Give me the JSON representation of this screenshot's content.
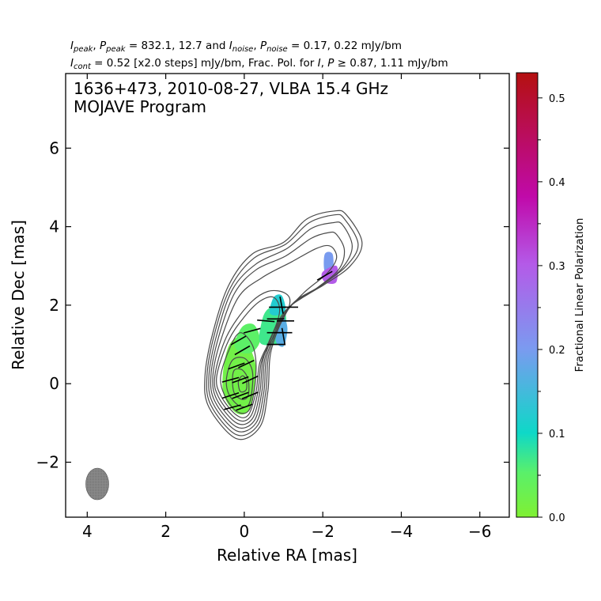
{
  "chart_data": {
    "type": "contour",
    "header_line1": {
      "s1": "I",
      "s2": "peak",
      "s3": ", ",
      "s4": "P",
      "s5": "peak",
      "s6": " = 832.1, 12.7 and ",
      "s7": "I",
      "s8": "noise",
      "s9": ", ",
      "s10": "P",
      "s11": "noise",
      "s12": " = 0.17, 0.22 mJy/bm"
    },
    "header_line2": {
      "s1": "I",
      "s2": "cont",
      "s3": " = 0.52 [x2.0 steps] mJy/bm, Frac. Pol. for ",
      "s4": "I",
      "s5": ", ",
      "s6": "P",
      "s7": " ≥ 0.87, 1.11 mJy/bm"
    },
    "title_line1": "1636+473, 2010-08-27, VLBA 15.4 GHz",
    "title_line2": "MOJAVE Program",
    "xlabel": "Relative RA [mas]",
    "ylabel": "Relative Dec [mas]",
    "xlim": [
      4.55,
      -6.75
    ],
    "ylim": [
      -3.4,
      7.9
    ],
    "x_ticks": [
      4,
      2,
      0,
      -2,
      -4,
      -6
    ],
    "x_tick_labels": [
      "4",
      "2",
      "0",
      "−2",
      "−4",
      "−6"
    ],
    "y_ticks": [
      -2,
      0,
      2,
      4,
      6
    ],
    "y_tick_labels": [
      "−2",
      "0",
      "2",
      "4",
      "6"
    ],
    "colorbar": {
      "label": "Fractional Linear Polarization",
      "range": [
        0.0,
        0.53
      ],
      "ticks": [
        0.0,
        0.1,
        0.2,
        0.3,
        0.4,
        0.5
      ],
      "tick_labels": [
        "0.0",
        "0.1",
        "0.2",
        "0.3",
        "0.4",
        "0.5"
      ],
      "minor_ticks": [
        0.05,
        0.15,
        0.25,
        0.35,
        0.45
      ]
    },
    "beam": {
      "x": 3.7,
      "y": -2.6,
      "major_mas": 0.85,
      "minor_mas": 0.58
    },
    "contours": [
      [
        [
          1.0,
          0.2
        ],
        [
          0.9,
          -0.6
        ],
        [
          0.2,
          -1.4
        ],
        [
          -0.4,
          -1.1
        ],
        [
          -0.6,
          -0.2
        ],
        [
          -0.7,
          0.9
        ],
        [
          -1.2,
          2.0
        ],
        [
          -2.0,
          2.5
        ],
        [
          -2.7,
          3.0
        ],
        [
          -3.0,
          3.6
        ],
        [
          -2.6,
          4.3
        ],
        [
          -2.3,
          4.4
        ],
        [
          -1.6,
          4.2
        ],
        [
          -1.0,
          3.6
        ],
        [
          -0.2,
          3.3
        ],
        [
          0.4,
          2.5
        ],
        [
          0.8,
          1.3
        ]
      ],
      [
        [
          0.95,
          0.2
        ],
        [
          0.85,
          -0.55
        ],
        [
          0.2,
          -1.3
        ],
        [
          -0.35,
          -1.05
        ],
        [
          -0.55,
          -0.2
        ],
        [
          -0.65,
          0.85
        ],
        [
          -1.15,
          1.95
        ],
        [
          -1.95,
          2.5
        ],
        [
          -2.6,
          3.0
        ],
        [
          -2.9,
          3.55
        ],
        [
          -2.55,
          4.2
        ],
        [
          -2.3,
          4.3
        ],
        [
          -1.65,
          4.1
        ],
        [
          -1.05,
          3.55
        ],
        [
          -0.25,
          3.2
        ],
        [
          0.35,
          2.45
        ],
        [
          0.75,
          1.3
        ]
      ],
      [
        [
          0.9,
          0.2
        ],
        [
          0.8,
          -0.5
        ],
        [
          0.2,
          -1.2
        ],
        [
          -0.3,
          -1.0
        ],
        [
          -0.5,
          -0.2
        ],
        [
          -0.6,
          0.8
        ],
        [
          -1.1,
          1.9
        ],
        [
          -1.9,
          2.45
        ],
        [
          -2.5,
          2.95
        ],
        [
          -2.75,
          3.5
        ],
        [
          -2.5,
          4.05
        ],
        [
          -2.25,
          4.1
        ],
        [
          -1.7,
          3.95
        ],
        [
          -1.1,
          3.45
        ],
        [
          -0.3,
          3.05
        ],
        [
          0.3,
          2.4
        ],
        [
          0.7,
          1.25
        ]
      ],
      [
        [
          0.85,
          0.2
        ],
        [
          0.75,
          -0.45
        ],
        [
          0.2,
          -1.1
        ],
        [
          -0.25,
          -0.95
        ],
        [
          -0.45,
          -0.2
        ],
        [
          -0.55,
          0.75
        ],
        [
          -1.0,
          1.8
        ],
        [
          -1.8,
          2.4
        ],
        [
          -2.4,
          2.9
        ],
        [
          -2.55,
          3.4
        ],
        [
          -2.35,
          3.8
        ],
        [
          -2.15,
          3.85
        ],
        [
          -1.7,
          3.7
        ],
        [
          -1.05,
          3.25
        ],
        [
          -0.3,
          2.9
        ],
        [
          0.25,
          2.3
        ],
        [
          0.65,
          1.2
        ]
      ],
      [
        [
          0.8,
          0.2
        ],
        [
          0.7,
          -0.4
        ],
        [
          0.2,
          -1.0
        ],
        [
          -0.2,
          -0.9
        ],
        [
          -0.4,
          -0.2
        ],
        [
          -0.5,
          0.7
        ],
        [
          -0.9,
          1.6
        ],
        [
          -1.5,
          2.3
        ],
        [
          -2.1,
          2.8
        ],
        [
          -2.35,
          3.2
        ],
        [
          -2.2,
          3.5
        ],
        [
          -1.85,
          3.45
        ],
        [
          -1.2,
          3.1
        ],
        [
          -0.45,
          2.7
        ],
        [
          0.15,
          2.2
        ],
        [
          0.6,
          1.1
        ]
      ],
      [
        [
          0.75,
          0.2
        ],
        [
          0.65,
          -0.35
        ],
        [
          0.2,
          -0.9
        ],
        [
          -0.15,
          -0.85
        ],
        [
          -0.35,
          -0.2
        ],
        [
          -0.45,
          0.6
        ],
        [
          -0.8,
          1.3
        ],
        [
          -1.15,
          2.0
        ],
        [
          -1.05,
          2.3
        ],
        [
          -0.6,
          2.35
        ],
        [
          -0.1,
          2.0
        ],
        [
          0.45,
          1.2
        ]
      ],
      [
        [
          0.7,
          0.2
        ],
        [
          0.6,
          -0.3
        ],
        [
          0.2,
          -0.8
        ],
        [
          -0.1,
          -0.8
        ],
        [
          -0.3,
          -0.2
        ],
        [
          -0.4,
          0.55
        ],
        [
          -0.7,
          1.2
        ],
        [
          -0.9,
          1.85
        ],
        [
          -0.75,
          2.2
        ],
        [
          -0.4,
          2.1
        ],
        [
          0.0,
          1.7
        ],
        [
          0.4,
          1.1
        ]
      ],
      [
        [
          0.6,
          0.2
        ],
        [
          0.5,
          -0.3
        ],
        [
          0.2,
          -0.7
        ],
        [
          -0.1,
          -0.7
        ],
        [
          -0.25,
          -0.2
        ],
        [
          -0.3,
          0.5
        ],
        [
          -0.2,
          1.0
        ],
        [
          0.1,
          1.3
        ],
        [
          0.35,
          0.95
        ]
      ],
      [
        [
          0.45,
          0.15
        ],
        [
          0.4,
          -0.25
        ],
        [
          0.15,
          -0.55
        ],
        [
          -0.1,
          -0.55
        ],
        [
          -0.2,
          -0.15
        ],
        [
          -0.2,
          0.35
        ],
        [
          0.0,
          0.65
        ],
        [
          0.3,
          0.6
        ]
      ],
      [
        [
          0.3,
          0.1
        ],
        [
          0.25,
          -0.25
        ],
        [
          0.05,
          -0.4
        ],
        [
          -0.1,
          -0.3
        ],
        [
          -0.1,
          0.1
        ],
        [
          0.05,
          0.35
        ],
        [
          0.25,
          0.35
        ]
      ],
      [
        [
          0.15,
          0.05
        ],
        [
          0.1,
          -0.2
        ],
        [
          -0.05,
          -0.15
        ],
        [
          -0.05,
          0.1
        ],
        [
          0.05,
          0.2
        ]
      ]
    ],
    "pol_regions": [
      {
        "frac": 0.02,
        "shape": [
          [
            0.55,
            0.2
          ],
          [
            0.5,
            -0.35
          ],
          [
            0.2,
            -0.75
          ],
          [
            -0.1,
            -0.7
          ],
          [
            -0.25,
            -0.15
          ],
          [
            -0.3,
            0.4
          ],
          [
            -0.15,
            0.9
          ],
          [
            0.1,
            1.2
          ],
          [
            0.4,
            0.95
          ]
        ]
      },
      {
        "frac": 0.05,
        "shape": [
          [
            0.25,
            1.0
          ],
          [
            0.05,
            1.45
          ],
          [
            -0.25,
            1.5
          ],
          [
            -0.4,
            1.1
          ],
          [
            -0.2,
            0.8
          ],
          [
            0.1,
            0.8
          ]
        ]
      },
      {
        "frac": 0.07,
        "shape": [
          [
            -0.4,
            1.05
          ],
          [
            -0.45,
            1.6
          ],
          [
            -0.6,
            1.9
          ],
          [
            -0.9,
            2.0
          ],
          [
            -1.05,
            1.8
          ],
          [
            -1.05,
            1.2
          ],
          [
            -0.8,
            1.0
          ]
        ]
      },
      {
        "frac": 0.12,
        "shape": [
          [
            -0.65,
            1.8
          ],
          [
            -0.75,
            2.2
          ],
          [
            -0.95,
            2.25
          ],
          [
            -1.05,
            1.9
          ],
          [
            -0.9,
            1.75
          ]
        ]
      },
      {
        "frac": 0.17,
        "shape": [
          [
            -0.8,
            1.1
          ],
          [
            -0.9,
            1.55
          ],
          [
            -1.0,
            1.7
          ],
          [
            -1.1,
            1.4
          ],
          [
            -1.0,
            0.95
          ]
        ]
      },
      {
        "frac": 0.2,
        "shape": [
          [
            -2.05,
            3.3
          ],
          [
            -2.25,
            3.3
          ],
          [
            -2.25,
            2.85
          ],
          [
            -2.05,
            2.85
          ]
        ]
      },
      {
        "frac": 0.3,
        "shape": [
          [
            -2.0,
            2.85
          ],
          [
            -2.35,
            3.0
          ],
          [
            -2.35,
            2.6
          ],
          [
            -2.15,
            2.55
          ],
          [
            -2.0,
            2.65
          ]
        ]
      }
    ],
    "evpa_ticks": [
      {
        "x": 0.1,
        "y": 0.1,
        "angle": -20
      },
      {
        "x": 0.35,
        "y": 0.1,
        "angle": -15
      },
      {
        "x": -0.15,
        "y": 0.1,
        "angle": -25
      },
      {
        "x": 0.1,
        "y": -0.3,
        "angle": -20
      },
      {
        "x": 0.35,
        "y": -0.3,
        "angle": -18
      },
      {
        "x": -0.15,
        "y": -0.3,
        "angle": -22
      },
      {
        "x": 0.2,
        "y": 0.45,
        "angle": -20
      },
      {
        "x": -0.05,
        "y": 0.5,
        "angle": -25
      },
      {
        "x": 0.3,
        "y": -0.6,
        "angle": -15
      },
      {
        "x": 0.0,
        "y": -0.6,
        "angle": -20
      },
      {
        "x": 0.15,
        "y": 1.1,
        "angle": -30
      },
      {
        "x": 0.05,
        "y": 0.85,
        "angle": -30
      },
      {
        "x": -0.2,
        "y": 1.35,
        "angle": -15
      },
      {
        "x": -0.55,
        "y": 1.6,
        "angle": 5
      },
      {
        "x": -0.8,
        "y": 1.65,
        "angle": 0
      },
      {
        "x": -1.05,
        "y": 1.6,
        "angle": 0
      },
      {
        "x": -0.8,
        "y": 1.3,
        "angle": 0
      },
      {
        "x": -1.0,
        "y": 1.3,
        "angle": 0
      },
      {
        "x": -0.8,
        "y": 1.0,
        "angle": 0
      },
      {
        "x": -0.85,
        "y": 1.95,
        "angle": 0
      },
      {
        "x": -1.15,
        "y": 1.95,
        "angle": 0
      },
      {
        "x": -0.95,
        "y": 2.0,
        "angle": 80
      },
      {
        "x": -1.0,
        "y": 1.2,
        "angle": 80
      },
      {
        "x": -2.05,
        "y": 2.75,
        "angle": -30
      }
    ]
  }
}
